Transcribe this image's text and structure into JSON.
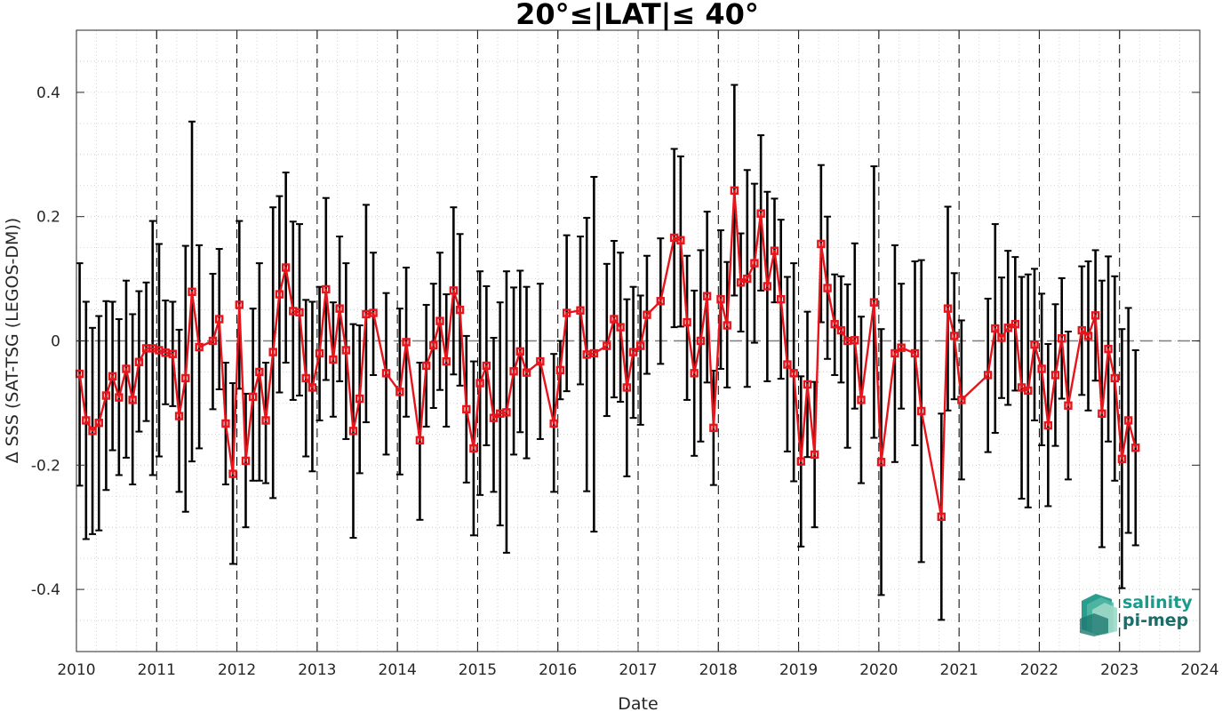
{
  "chart_data": {
    "type": "line",
    "title": "20°≤|LAT|≤ 40°",
    "xlabel": "Date",
    "ylabel": "Δ SSS (SAT-TSG (LEGOS-DM))",
    "xlim": [
      2010,
      2024
    ],
    "ylim": [
      -0.5,
      0.5
    ],
    "x_ticks": [
      "2010",
      "2011",
      "2012",
      "2013",
      "2014",
      "2015",
      "2016",
      "2017",
      "2018",
      "2019",
      "2020",
      "2021",
      "2022",
      "2023",
      "2024"
    ],
    "y_ticks": [
      "0.4",
      "0.2",
      "0",
      "-0.2",
      "-0.4"
    ],
    "y_tick_values": [
      0.4,
      0.2,
      0,
      -0.2,
      -0.4
    ],
    "grid": "dotted minor grid, dashed vertical lines at each year",
    "reference_line": 0,
    "series": [
      {
        "color": "#e8141c",
        "errorbar_color": "#000000",
        "marker": "square",
        "points": [
          [
            2010.04,
            -0.053,
            0.125,
            -0.233
          ],
          [
            2010.12,
            -0.128,
            0.063,
            -0.319
          ],
          [
            2010.2,
            -0.145,
            0.021,
            -0.311
          ],
          [
            2010.28,
            -0.132,
            0.04,
            -0.305
          ],
          [
            2010.37,
            -0.088,
            0.064,
            -0.24
          ],
          [
            2010.45,
            -0.057,
            0.063,
            -0.176
          ],
          [
            2010.53,
            -0.091,
            0.035,
            -0.216
          ],
          [
            2010.62,
            -0.045,
            0.097,
            -0.188
          ],
          [
            2010.7,
            -0.095,
            0.043,
            -0.231
          ],
          [
            2010.78,
            -0.034,
            0.08,
            -0.146
          ],
          [
            2010.87,
            -0.012,
            0.094,
            -0.129
          ],
          [
            2010.95,
            -0.012,
            0.193,
            -0.216
          ],
          [
            2011.03,
            -0.015,
            0.156,
            -0.186
          ],
          [
            2011.11,
            -0.019,
            0.065,
            -0.102
          ],
          [
            2011.2,
            -0.021,
            0.063,
            -0.105
          ],
          [
            2011.28,
            -0.121,
            0.018,
            -0.243
          ],
          [
            2011.36,
            -0.06,
            0.153,
            -0.275
          ],
          [
            2011.44,
            0.079,
            0.353,
            -0.194
          ],
          [
            2011.53,
            -0.01,
            0.154,
            -0.173
          ],
          [
            2011.7,
            0.0,
            0.108,
            -0.11
          ],
          [
            2011.78,
            0.035,
            0.148,
            -0.078
          ],
          [
            2011.86,
            -0.133,
            -0.035,
            -0.231
          ],
          [
            2011.95,
            -0.214,
            -0.068,
            -0.359
          ],
          [
            2012.03,
            0.058,
            0.193,
            -0.077
          ],
          [
            2012.11,
            -0.193,
            -0.085,
            -0.3
          ],
          [
            2012.2,
            -0.09,
            0.052,
            -0.225
          ],
          [
            2012.28,
            -0.05,
            0.125,
            -0.225
          ],
          [
            2012.36,
            -0.128,
            -0.035,
            -0.229
          ],
          [
            2012.45,
            -0.018,
            0.215,
            -0.253
          ],
          [
            2012.53,
            0.075,
            0.233,
            -0.083
          ],
          [
            2012.61,
            0.118,
            0.271,
            -0.035
          ],
          [
            2012.7,
            0.048,
            0.192,
            -0.095
          ],
          [
            2012.78,
            0.046,
            0.188,
            -0.088
          ],
          [
            2012.86,
            -0.06,
            0.066,
            -0.186
          ],
          [
            2012.94,
            -0.075,
            0.063,
            -0.21
          ],
          [
            2013.03,
            -0.02,
            0.087,
            -0.128
          ],
          [
            2013.11,
            0.083,
            0.23,
            -0.063
          ],
          [
            2013.2,
            -0.03,
            0.062,
            -0.122
          ],
          [
            2013.28,
            0.052,
            0.168,
            -0.065
          ],
          [
            2013.36,
            -0.015,
            0.125,
            -0.158
          ],
          [
            2013.45,
            -0.145,
            0.027,
            -0.317
          ],
          [
            2013.53,
            -0.093,
            0.025,
            -0.213
          ],
          [
            2013.61,
            0.043,
            0.219,
            -0.131
          ],
          [
            2013.7,
            0.045,
            0.142,
            -0.055
          ],
          [
            2013.86,
            -0.052,
            0.077,
            -0.183
          ],
          [
            2014.03,
            -0.082,
            0.052,
            -0.215
          ],
          [
            2014.11,
            -0.002,
            0.118,
            -0.122
          ],
          [
            2014.28,
            -0.16,
            -0.035,
            -0.288
          ],
          [
            2014.36,
            -0.04,
            0.058,
            -0.138
          ],
          [
            2014.45,
            -0.007,
            0.092,
            -0.108
          ],
          [
            2014.53,
            0.032,
            0.142,
            -0.079
          ],
          [
            2014.61,
            -0.033,
            0.075,
            -0.138
          ],
          [
            2014.7,
            0.081,
            0.215,
            -0.054
          ],
          [
            2014.78,
            0.05,
            0.172,
            -0.072
          ],
          [
            2014.86,
            -0.11,
            0.008,
            -0.228
          ],
          [
            2014.95,
            -0.173,
            -0.033,
            -0.313
          ],
          [
            2015.03,
            -0.068,
            0.112,
            -0.248
          ],
          [
            2015.11,
            -0.04,
            0.088,
            -0.168
          ],
          [
            2015.2,
            -0.124,
            0.005,
            -0.243
          ],
          [
            2015.28,
            -0.117,
            0.062,
            -0.297
          ],
          [
            2015.36,
            -0.115,
            0.112,
            -0.341
          ],
          [
            2015.45,
            -0.049,
            0.086,
            -0.183
          ],
          [
            2015.53,
            -0.017,
            0.113,
            -0.147
          ],
          [
            2015.61,
            -0.051,
            0.087,
            -0.189
          ],
          [
            2015.78,
            -0.033,
            0.092,
            -0.158
          ],
          [
            2015.95,
            -0.133,
            -0.021,
            -0.243
          ],
          [
            2016.03,
            -0.047,
            0.0,
            -0.094
          ],
          [
            2016.11,
            0.045,
            0.17,
            -0.081
          ],
          [
            2016.28,
            0.049,
            0.168,
            -0.07
          ],
          [
            2016.36,
            -0.022,
            0.198,
            -0.242
          ],
          [
            2016.45,
            -0.02,
            0.264,
            -0.307
          ],
          [
            2016.61,
            -0.008,
            0.124,
            -0.121
          ],
          [
            2016.7,
            0.035,
            0.161,
            -0.091
          ],
          [
            2016.78,
            0.022,
            0.142,
            -0.098
          ],
          [
            2016.86,
            -0.075,
            0.067,
            -0.218
          ],
          [
            2016.94,
            -0.018,
            0.087,
            -0.124
          ],
          [
            2017.03,
            -0.008,
            0.073,
            -0.135
          ],
          [
            2017.11,
            0.042,
            0.137,
            -0.053
          ],
          [
            2017.28,
            0.064,
            0.165,
            -0.037
          ],
          [
            2017.45,
            0.166,
            0.309,
            0.022
          ],
          [
            2017.53,
            0.162,
            0.297,
            0.023
          ],
          [
            2017.61,
            0.03,
            0.137,
            -0.095
          ],
          [
            2017.7,
            -0.052,
            0.081,
            -0.185
          ],
          [
            2017.78,
            0.0,
            0.146,
            -0.162
          ],
          [
            2017.86,
            0.072,
            0.208,
            -0.067
          ],
          [
            2017.94,
            -0.14,
            -0.048,
            -0.232
          ],
          [
            2018.03,
            0.067,
            0.178,
            -0.045
          ],
          [
            2018.11,
            0.025,
            0.127,
            -0.075
          ],
          [
            2018.2,
            0.242,
            0.412,
            0.073
          ],
          [
            2018.28,
            0.094,
            0.173,
            0.015
          ],
          [
            2018.36,
            0.1,
            0.275,
            -0.074
          ],
          [
            2018.45,
            0.125,
            0.253,
            -0.003
          ],
          [
            2018.53,
            0.205,
            0.331,
            0.081
          ],
          [
            2018.61,
            0.088,
            0.24,
            -0.065
          ],
          [
            2018.7,
            0.145,
            0.229,
            0.062
          ],
          [
            2018.78,
            0.067,
            0.195,
            -0.061
          ],
          [
            2018.86,
            -0.038,
            0.103,
            -0.178
          ],
          [
            2018.94,
            -0.052,
            0.125,
            -0.226
          ],
          [
            2019.03,
            -0.194,
            -0.057,
            -0.331
          ],
          [
            2019.11,
            -0.07,
            0.047,
            -0.187
          ],
          [
            2019.2,
            -0.183,
            -0.066,
            -0.3
          ],
          [
            2019.28,
            0.156,
            0.283,
            0.03
          ],
          [
            2019.36,
            0.085,
            0.2,
            -0.029
          ],
          [
            2019.45,
            0.027,
            0.107,
            -0.055
          ],
          [
            2019.53,
            0.017,
            0.104,
            -0.067
          ],
          [
            2019.61,
            0.0,
            0.091,
            -0.172
          ],
          [
            2019.7,
            0.001,
            0.157,
            -0.109
          ],
          [
            2019.78,
            -0.095,
            0.039,
            -0.229
          ],
          [
            2019.94,
            0.062,
            0.281,
            -0.156
          ],
          [
            2020.03,
            -0.195,
            0.019,
            -0.409
          ],
          [
            2020.2,
            -0.02,
            0.154,
            -0.195
          ],
          [
            2020.28,
            -0.011,
            0.092,
            -0.109
          ],
          [
            2020.45,
            -0.02,
            0.128,
            -0.168
          ],
          [
            2020.53,
            -0.113,
            0.13,
            -0.356
          ],
          [
            2020.78,
            -0.283,
            -0.117,
            -0.449
          ],
          [
            2020.86,
            0.052,
            0.216,
            -0.112
          ],
          [
            2020.94,
            0.008,
            0.109,
            -0.094
          ],
          [
            2021.03,
            -0.095,
            0.033,
            -0.223
          ],
          [
            2021.36,
            -0.055,
            0.068,
            -0.179
          ],
          [
            2021.45,
            0.02,
            0.188,
            -0.148
          ],
          [
            2021.53,
            0.005,
            0.102,
            -0.092
          ],
          [
            2021.61,
            0.021,
            0.145,
            -0.103
          ],
          [
            2021.7,
            0.027,
            0.135,
            -0.08
          ],
          [
            2021.78,
            -0.075,
            0.103,
            -0.254
          ],
          [
            2021.86,
            -0.08,
            0.107,
            -0.268
          ],
          [
            2021.94,
            -0.006,
            0.116,
            -0.128
          ],
          [
            2022.03,
            -0.045,
            0.076,
            -0.168
          ],
          [
            2022.11,
            -0.136,
            -0.005,
            -0.266
          ],
          [
            2022.2,
            -0.055,
            0.059,
            -0.169
          ],
          [
            2022.28,
            0.004,
            0.101,
            -0.093
          ],
          [
            2022.36,
            -0.104,
            0.015,
            -0.223
          ],
          [
            2022.53,
            0.017,
            0.12,
            -0.087
          ],
          [
            2022.61,
            0.008,
            0.128,
            -0.112
          ],
          [
            2022.7,
            0.041,
            0.146,
            -0.064
          ],
          [
            2022.78,
            -0.117,
            0.097,
            -0.332
          ],
          [
            2022.86,
            -0.013,
            0.136,
            -0.162
          ],
          [
            2022.94,
            -0.06,
            0.104,
            -0.225
          ],
          [
            2023.03,
            -0.19,
            0.019,
            -0.398
          ],
          [
            2023.11,
            -0.128,
            0.053,
            -0.309
          ],
          [
            2023.2,
            -0.172,
            -0.015,
            -0.329
          ]
        ]
      }
    ]
  },
  "logo": {
    "line1": "salinity",
    "line2": "pi-mep"
  }
}
